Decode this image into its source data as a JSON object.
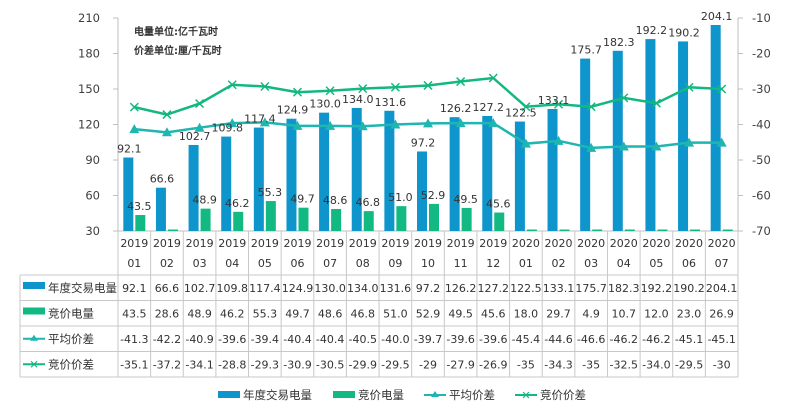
{
  "chart_data": {
    "type": "bar",
    "title": "",
    "annotations": [
      "电量单位:亿千瓦时",
      "价差单位:厘/千瓦时"
    ],
    "categories": [
      [
        "2019",
        "01"
      ],
      [
        "2019",
        "02"
      ],
      [
        "2019",
        "03"
      ],
      [
        "2019",
        "04"
      ],
      [
        "2019",
        "05"
      ],
      [
        "2019",
        "06"
      ],
      [
        "2019",
        "07"
      ],
      [
        "2019",
        "08"
      ],
      [
        "2019",
        "09"
      ],
      [
        "2019",
        "10"
      ],
      [
        "2019",
        "11"
      ],
      [
        "2019",
        "12"
      ],
      [
        "2020",
        "01"
      ],
      [
        "2020",
        "02"
      ],
      [
        "2020",
        "03"
      ],
      [
        "2020",
        "04"
      ],
      [
        "2020",
        "05"
      ],
      [
        "2020",
        "06"
      ],
      [
        "2020",
        "07"
      ]
    ],
    "left_axis": {
      "min": 30,
      "max": 210,
      "ticks": [
        30,
        60,
        90,
        120,
        150,
        180,
        210
      ]
    },
    "right_axis": {
      "min": -70,
      "max": -10,
      "ticks": [
        -70,
        -60,
        -50,
        -40,
        -30,
        -20,
        -10
      ]
    },
    "grid": false,
    "legend_position": "bottom",
    "series": [
      {
        "name": "年度交易电量",
        "kind": "bar",
        "axis": "left",
        "color": "#0e96cc",
        "values": [
          92.1,
          66.6,
          102.7,
          109.8,
          117.4,
          124.9,
          130.0,
          134.0,
          131.6,
          97.2,
          126.2,
          127.2,
          122.5,
          133.1,
          175.7,
          182.3,
          192.2,
          190.2,
          204.1
        ],
        "labels": [
          "92.1",
          "66.6",
          "102.7",
          "109.8",
          "117.4",
          "124.9",
          "130.0",
          "134.0",
          "131.6",
          "97.2",
          "126.2",
          "127.2",
          "122.5",
          "133.1",
          "175.7",
          "182.3",
          "192.2",
          "190.2",
          "204.1"
        ],
        "show_labels": true
      },
      {
        "name": "竞价电量",
        "kind": "bar",
        "axis": "left",
        "color": "#12b983",
        "values": [
          43.5,
          28.6,
          48.9,
          46.2,
          55.3,
          49.7,
          48.6,
          46.8,
          51.0,
          52.9,
          49.5,
          45.6,
          18.0,
          29.7,
          4.9,
          10.7,
          12.0,
          23.0,
          26.9
        ],
        "labels": [
          "43.5",
          "28.6",
          "48.9",
          "46.2",
          "55.3",
          "49.7",
          "48.6",
          "46.8",
          "51.0",
          "52.9",
          "49.5",
          "45.6",
          "18.0",
          "29.7",
          "4.9",
          "10.7",
          "12.0",
          "23.0",
          "26.9"
        ],
        "show_labels": true
      },
      {
        "name": "平均价差",
        "kind": "line",
        "marker": "triangle",
        "axis": "right",
        "color": "#1fb5b0",
        "values": [
          -41.3,
          -42.2,
          -40.9,
          -39.6,
          -39.4,
          -40.4,
          -40.4,
          -40.5,
          -40.0,
          -39.7,
          -39.6,
          -39.6,
          -45.4,
          -44.6,
          -46.6,
          -46.2,
          -46.2,
          -45.1,
          -45.1
        ],
        "labels": [
          "-41.3",
          "-42.2",
          "-40.9",
          "-39.6",
          "-39.4",
          "-40.4",
          "-40.4",
          "-40.5",
          "-40.0",
          "-39.7",
          "-39.6",
          "-39.6",
          "-45.4",
          "-44.6",
          "-46.6",
          "-46.2",
          "-46.2",
          "-45.1",
          "-45.1"
        ]
      },
      {
        "name": "竞价价差",
        "kind": "line",
        "marker": "x",
        "axis": "right",
        "color": "#13b781",
        "values": [
          -35.1,
          -37.2,
          -34.1,
          -28.8,
          -29.3,
          -30.9,
          -30.5,
          -29.9,
          -29.5,
          -29,
          -27.9,
          -26.9,
          -35,
          -34.3,
          -35,
          -32.5,
          -34.0,
          -29.5,
          -30
        ],
        "labels": [
          "-35.1",
          "-37.2",
          "-34.1",
          "-28.8",
          "-29.3",
          "-30.9",
          "-30.5",
          "-29.9",
          "-29.5",
          "-29",
          "-27.9",
          "-26.9",
          "-35",
          "-34.3",
          "-35",
          "-32.5",
          "-34.0",
          "-29.5",
          "-30"
        ]
      }
    ],
    "data_table": true
  }
}
